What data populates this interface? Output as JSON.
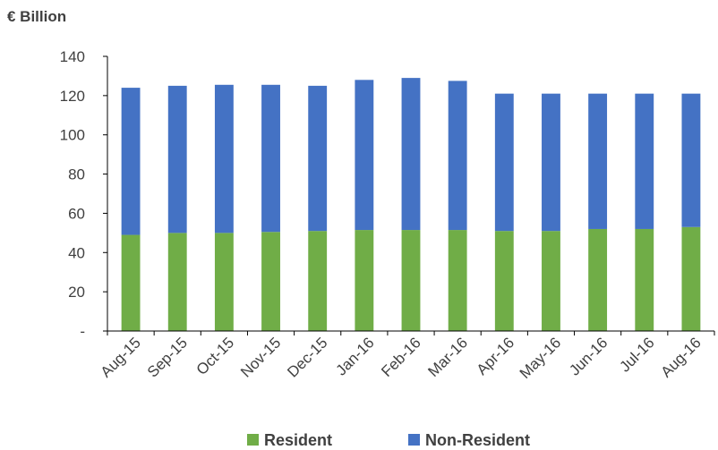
{
  "chart_data": {
    "type": "bar",
    "stacked": true,
    "ylabel": "€ Billion",
    "xlabel": "",
    "ylim": [
      0,
      140
    ],
    "yticks": [
      0,
      20,
      40,
      60,
      80,
      100,
      120,
      140
    ],
    "ytick_labels": [
      "-",
      "20",
      "40",
      "60",
      "80",
      "100",
      "120",
      "140"
    ],
    "categories": [
      "Aug-15",
      "Sep-15",
      "Oct-15",
      "Nov-15",
      "Dec-15",
      "Jan-16",
      "Feb-16",
      "Mar-16",
      "Apr-16",
      "May-16",
      "Jun-16",
      "Jul-16",
      "Aug-16"
    ],
    "series": [
      {
        "name": "Resident",
        "color": "#70ad47",
        "values": [
          49,
          50,
          50,
          50.5,
          51,
          51.5,
          51.5,
          51.5,
          51,
          51,
          52,
          52,
          53
        ]
      },
      {
        "name": "Non-Resident",
        "color": "#4472c4",
        "values": [
          75,
          75,
          75.5,
          75,
          74,
          76.5,
          77.5,
          76,
          70,
          70,
          69,
          69,
          68
        ]
      }
    ],
    "grid": false,
    "legend": "bottom"
  }
}
